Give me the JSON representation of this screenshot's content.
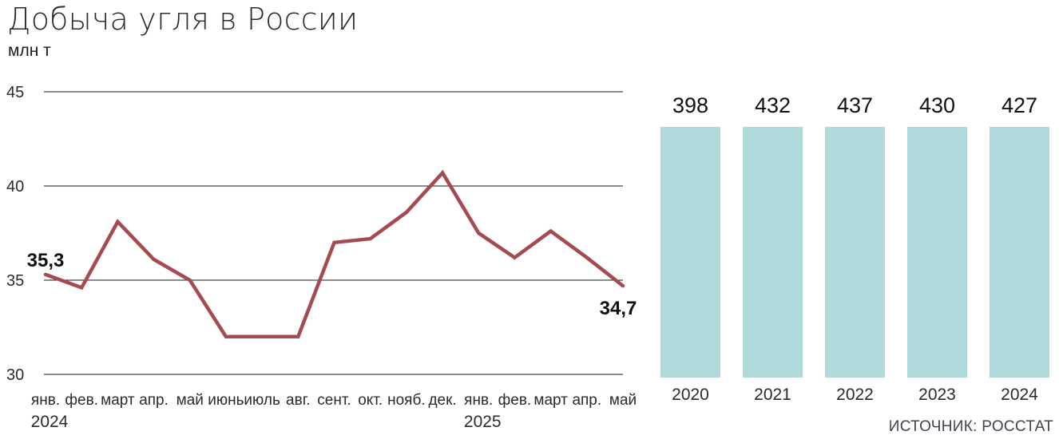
{
  "header": {
    "title": "Добыча угля в России",
    "unit": "млн т"
  },
  "source": "ИСТОЧНИК: РОССТАТ",
  "colors": {
    "line": "#a64a52",
    "bar": "#b0d9db",
    "grid": "#1a1a1a",
    "axis_text": "#2b2b2b",
    "value_text": "#111111"
  },
  "chart_data": [
    {
      "type": "line",
      "title": "Добыча угля в России, помесячно",
      "ylabel": "млн т",
      "x": [
        "янв.",
        "фев.",
        "март",
        "апр.",
        "май",
        "июнь",
        "июль",
        "авг.",
        "сент.",
        "окт.",
        "нояб.",
        "дек.",
        "янв.",
        "фев.",
        "март",
        "апр.",
        "май"
      ],
      "x_years": [
        {
          "label": "2024",
          "index": 0
        },
        {
          "label": "2025",
          "index": 12
        }
      ],
      "values": [
        35.3,
        34.6,
        38.1,
        36.1,
        35.0,
        32.0,
        32.0,
        32.0,
        37.0,
        37.2,
        38.6,
        40.7,
        37.5,
        36.2,
        37.6,
        36.2,
        34.7
      ],
      "point_labels": [
        {
          "index": 0,
          "text": "35,3",
          "position": "above"
        },
        {
          "index": 16,
          "text": "34,7",
          "position": "below"
        }
      ],
      "yticks": [
        45,
        40,
        35,
        30
      ],
      "ylim": [
        30,
        45
      ],
      "grid": true,
      "legend": false
    },
    {
      "type": "bar",
      "title": "Добыча угля в России, по годам",
      "categories": [
        "2020",
        "2021",
        "2022",
        "2023",
        "2024"
      ],
      "values": [
        398,
        432,
        437,
        430,
        427
      ],
      "ylim": [
        0,
        437
      ],
      "grid": false,
      "legend": false
    }
  ]
}
